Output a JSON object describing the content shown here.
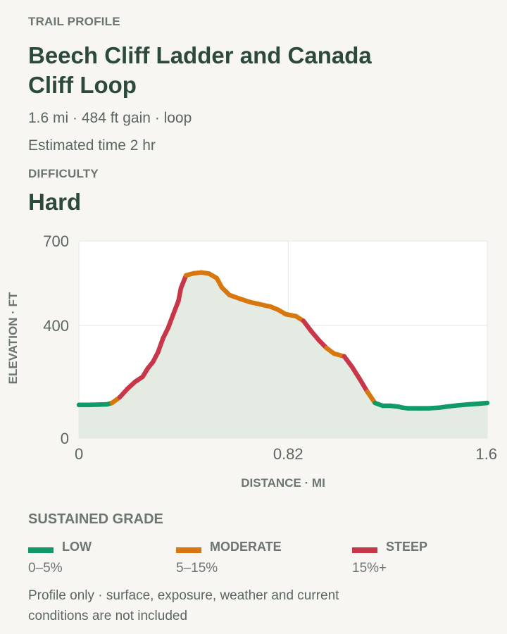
{
  "header": {
    "eyebrow": "TRAIL PROFILE",
    "title": "Beech Cliff Ladder and Canada Cliff Loop",
    "stats": "1.6 mi · 484 ft gain · loop",
    "estimated_time": "Estimated time 2 hr",
    "difficulty_label": "DIFFICULTY",
    "difficulty_value": "Hard"
  },
  "chart_data": {
    "type": "area",
    "xlabel": "DISTANCE · MI",
    "ylabel": "ELEVATION · FT",
    "xlim": [
      0,
      1.6
    ],
    "ylim": [
      0,
      700
    ],
    "x_ticks": [
      "0",
      "0.82",
      "1.6"
    ],
    "x_tick_values": [
      0,
      0.82,
      1.6
    ],
    "y_ticks": [
      "0",
      "400",
      "700"
    ],
    "y_tick_values": [
      0,
      400,
      700
    ],
    "grid": true,
    "colors": {
      "low": "#0f9a68",
      "moderate": "#d8770e",
      "steep": "#c8364a",
      "fill": "#e4ebe3",
      "plot_bg": "#ffffff"
    },
    "x": [
      0,
      0.04,
      0.08,
      0.11,
      0.13,
      0.16,
      0.19,
      0.22,
      0.25,
      0.27,
      0.29,
      0.31,
      0.33,
      0.35,
      0.37,
      0.39,
      0.4,
      0.42,
      0.45,
      0.48,
      0.51,
      0.54,
      0.56,
      0.59,
      0.63,
      0.67,
      0.71,
      0.75,
      0.78,
      0.81,
      0.85,
      0.88,
      0.91,
      0.94,
      0.97,
      1.0,
      1.04,
      1.07,
      1.1,
      1.13,
      1.16,
      1.19,
      1.22,
      1.25,
      1.27,
      1.29,
      1.33,
      1.37,
      1.41,
      1.45,
      1.49,
      1.53,
      1.56,
      1.6
    ],
    "elevation": [
      118,
      118,
      119,
      120,
      125,
      145,
      175,
      200,
      218,
      248,
      270,
      305,
      355,
      392,
      440,
      487,
      533,
      578,
      585,
      588,
      584,
      568,
      535,
      508,
      495,
      483,
      475,
      467,
      456,
      440,
      433,
      416,
      380,
      348,
      320,
      300,
      290,
      253,
      210,
      165,
      125,
      115,
      115,
      112,
      108,
      106,
      106,
      106,
      108,
      113,
      117,
      120,
      122,
      125
    ],
    "grade": [
      "low",
      "low",
      "low",
      "low",
      "moderate",
      "steep",
      "steep",
      "steep",
      "steep",
      "steep",
      "steep",
      "steep",
      "steep",
      "steep",
      "steep",
      "steep",
      "steep",
      "moderate",
      "moderate",
      "moderate",
      "moderate",
      "moderate",
      "moderate",
      "moderate",
      "moderate",
      "moderate",
      "moderate",
      "moderate",
      "moderate",
      "moderate",
      "moderate",
      "steep",
      "steep",
      "steep",
      "moderate",
      "moderate",
      "steep",
      "steep",
      "steep",
      "moderate",
      "low",
      "low",
      "low",
      "low",
      "low",
      "low",
      "low",
      "low",
      "low",
      "low",
      "low",
      "low",
      "low"
    ]
  },
  "legend": {
    "title": "SUSTAINED GRADE",
    "items": [
      {
        "name": "LOW",
        "range": "0–5%",
        "color": "#0f9a68"
      },
      {
        "name": "MODERATE",
        "range": "5–15%",
        "color": "#d8770e"
      },
      {
        "name": "STEEP",
        "range": "15%+",
        "color": "#c8364a"
      }
    ]
  },
  "footnote": "Profile only · surface, exposure, weather and current conditions are not included"
}
